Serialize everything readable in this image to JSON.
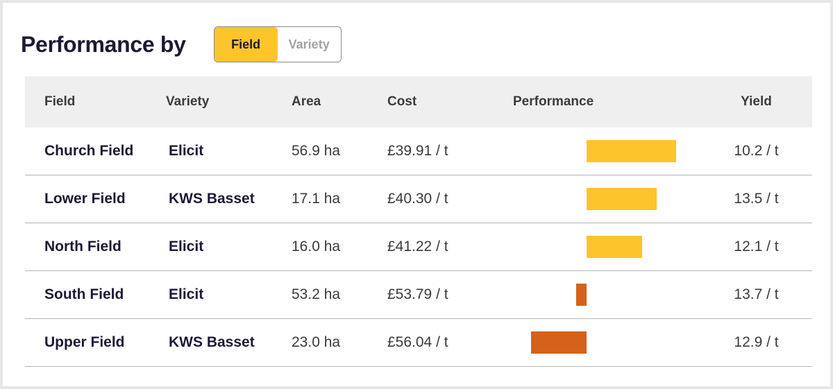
{
  "header": {
    "title": "Performance by",
    "toggle": {
      "options": [
        "Field",
        "Variety"
      ],
      "active": "Field"
    }
  },
  "table": {
    "columns": [
      "Field",
      "Variety",
      "Area",
      "Cost",
      "Performance",
      "Yield"
    ],
    "rows": [
      {
        "field": "Church Field",
        "variety": "Elicit",
        "area": "56.9 ha",
        "cost": "£39.91 / t",
        "performance": 1.0,
        "yield": "10.2 / t"
      },
      {
        "field": "Lower Field",
        "variety": "KWS Basset",
        "area": "17.1 ha",
        "cost": "£40.30 / t",
        "performance": 0.78,
        "yield": "13.5 / t"
      },
      {
        "field": "North Field",
        "variety": "Elicit",
        "area": "16.0 ha",
        "cost": "£41.22 / t",
        "performance": 0.62,
        "yield": "12.1 / t"
      },
      {
        "field": "South Field",
        "variety": "Elicit",
        "area": "53.2 ha",
        "cost": "£53.79 / t",
        "performance": -0.12,
        "yield": "13.7 / t"
      },
      {
        "field": "Upper Field",
        "variety": "KWS Basset",
        "area": "23.0 ha",
        "cost": "£56.04 / t",
        "performance": -0.62,
        "yield": "12.9 / t"
      }
    ]
  },
  "colors": {
    "positive": "#fdc42c",
    "negative": "#d4621a",
    "title": "#1c1a33"
  }
}
